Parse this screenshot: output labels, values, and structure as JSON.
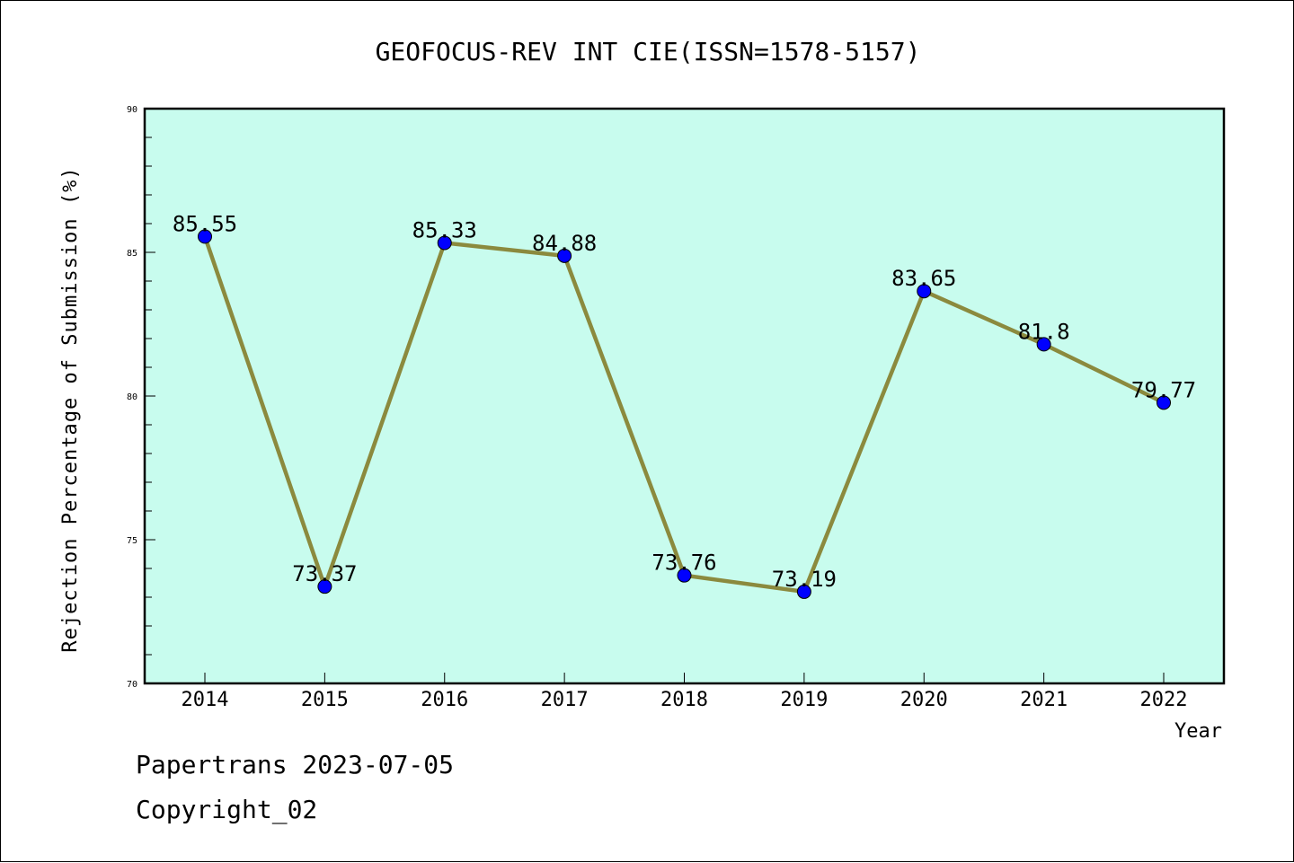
{
  "chart_data": {
    "type": "line",
    "title": "GEOFOCUS-REV INT CIE(ISSN=1578-5157)",
    "xlabel": "Year",
    "ylabel": "Rejection Percentage of Submission (%)",
    "categories": [
      "2014",
      "2015",
      "2016",
      "2017",
      "2018",
      "2019",
      "2020",
      "2021",
      "2022"
    ],
    "series": [
      {
        "values": [
          85.55,
          73.37,
          85.33,
          84.88,
          73.76,
          73.19,
          83.65,
          81.8,
          79.77
        ],
        "data_labels": [
          "85.55",
          "73.37",
          "85.33",
          "84.88",
          "73.76",
          "73.19",
          "83.65",
          "81.8",
          "79.77"
        ]
      }
    ],
    "ylim": [
      70,
      90
    ],
    "yticks": [
      "70",
      "75",
      "80",
      "85",
      "90"
    ],
    "grid": false,
    "colors": {
      "plot_background": "#c8fcee",
      "line": "#8b8a3e",
      "marker": "#0000ff"
    }
  },
  "footer": {
    "line1": "Papertrans 2023-07-05",
    "line2": "Copyright_02"
  }
}
